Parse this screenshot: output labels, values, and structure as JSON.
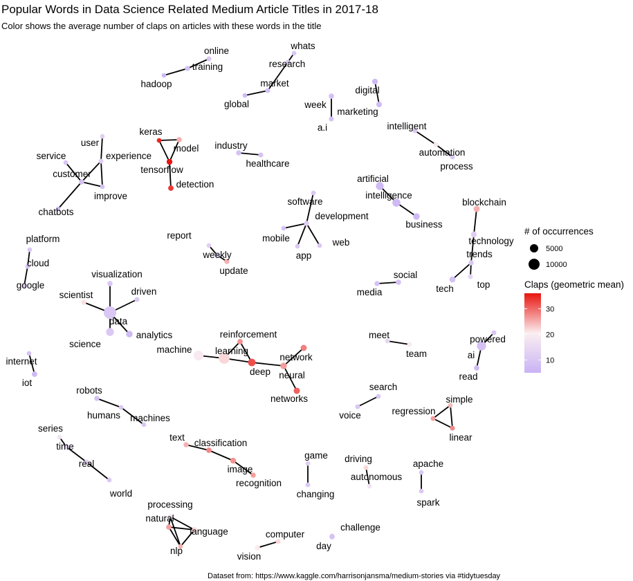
{
  "chart_data": {
    "type": "network",
    "title": "Popular Words in Data Science Related Medium Article Titles in 2017-18",
    "subtitle": "Color shows the average number of claps on articles with these words in the title",
    "caption": "Dataset from: https://www.kaggle.com/harrisonjansma/medium-stories via #tidytuesday",
    "legend": {
      "size_title": "# of occurrences",
      "size_entries": [
        5000,
        10000
      ],
      "color_title": "Claps (geometric mean)",
      "color_ticks": [
        10,
        20,
        30
      ],
      "color_range": [
        5,
        36
      ],
      "color_low": "#c9b3f5",
      "color_mid": "#fbeef0",
      "color_high": "#e8140f",
      "placement": "right"
    },
    "nodes": [
      {
        "word": "online",
        "claps": 8,
        "n": 400
      },
      {
        "word": "training",
        "claps": 7,
        "n": 500
      },
      {
        "word": "hadoop",
        "claps": 6,
        "n": 300
      },
      {
        "word": "whats",
        "claps": 8,
        "n": 300
      },
      {
        "word": "research",
        "claps": 8,
        "n": 400
      },
      {
        "word": "market",
        "claps": 7,
        "n": 400
      },
      {
        "word": "global",
        "claps": 6,
        "n": 300
      },
      {
        "word": "digital",
        "claps": 6,
        "n": 900
      },
      {
        "word": "week",
        "claps": 7,
        "n": 600
      },
      {
        "word": "marketing",
        "claps": 6,
        "n": 800
      },
      {
        "word": "a.i",
        "claps": 7,
        "n": 400
      },
      {
        "word": "intelligent",
        "claps": 8,
        "n": 300
      },
      {
        "word": "automation",
        "claps": 13,
        "n": 400
      },
      {
        "word": "process",
        "claps": 8,
        "n": 300
      },
      {
        "word": "keras",
        "claps": 34,
        "n": 300
      },
      {
        "word": "model",
        "claps": 20,
        "n": 600
      },
      {
        "word": "tensorflow",
        "claps": 36,
        "n": 900
      },
      {
        "word": "detection",
        "claps": 32,
        "n": 700
      },
      {
        "word": "industry",
        "claps": 7,
        "n": 500
      },
      {
        "word": "healthcare",
        "claps": 7,
        "n": 400
      },
      {
        "word": "user",
        "claps": 9,
        "n": 300
      },
      {
        "word": "experience",
        "claps": 9,
        "n": 400
      },
      {
        "word": "service",
        "claps": 8,
        "n": 300
      },
      {
        "word": "customer",
        "claps": 7,
        "n": 500
      },
      {
        "word": "improve",
        "claps": 7,
        "n": 300
      },
      {
        "word": "chatbots",
        "claps": 6,
        "n": 300
      },
      {
        "word": "artificial",
        "claps": 6,
        "n": 3000
      },
      {
        "word": "intelligence",
        "claps": 6,
        "n": 3200
      },
      {
        "word": "business",
        "claps": 6,
        "n": 1500
      },
      {
        "word": "software",
        "claps": 8,
        "n": 300
      },
      {
        "word": "development",
        "claps": 9,
        "n": 500
      },
      {
        "word": "mobile",
        "claps": 7,
        "n": 300
      },
      {
        "word": "web",
        "claps": 8,
        "n": 300
      },
      {
        "word": "app",
        "claps": 8,
        "n": 300
      },
      {
        "word": "blockchain",
        "claps": 20,
        "n": 1200
      },
      {
        "word": "technology",
        "claps": 9,
        "n": 1000
      },
      {
        "word": "trends",
        "claps": 8,
        "n": 500
      },
      {
        "word": "tech",
        "claps": 7,
        "n": 1100
      },
      {
        "word": "top",
        "claps": 10,
        "n": 400
      },
      {
        "word": "report",
        "claps": 9,
        "n": 300
      },
      {
        "word": "weekly",
        "claps": 7,
        "n": 400
      },
      {
        "word": "update",
        "claps": 20,
        "n": 500
      },
      {
        "word": "platform",
        "claps": 8,
        "n": 300
      },
      {
        "word": "cloud",
        "claps": 8,
        "n": 400
      },
      {
        "word": "google",
        "claps": 8,
        "n": 400
      },
      {
        "word": "visualization",
        "claps": 8,
        "n": 600
      },
      {
        "word": "scientist",
        "claps": 15,
        "n": 500
      },
      {
        "word": "driven",
        "claps": 8,
        "n": 400
      },
      {
        "word": "data",
        "claps": 8,
        "n": 12000
      },
      {
        "word": "science",
        "claps": 8,
        "n": 3000
      },
      {
        "word": "analytics",
        "claps": 6,
        "n": 1600
      },
      {
        "word": "social",
        "claps": 7,
        "n": 600
      },
      {
        "word": "media",
        "claps": 7,
        "n": 500
      },
      {
        "word": "machine",
        "claps": 13,
        "n": 6000
      },
      {
        "word": "learning",
        "claps": 16,
        "n": 8000
      },
      {
        "word": "reinforcement",
        "claps": 23,
        "n": 700
      },
      {
        "word": "deep",
        "claps": 30,
        "n": 2500
      },
      {
        "word": "network",
        "claps": 25,
        "n": 1200
      },
      {
        "word": "neural",
        "claps": 22,
        "n": 1500
      },
      {
        "word": "networks",
        "claps": 28,
        "n": 1300
      },
      {
        "word": "meet",
        "claps": 10,
        "n": 300
      },
      {
        "word": "team",
        "claps": 13,
        "n": 300
      },
      {
        "word": "powered",
        "claps": 8,
        "n": 400
      },
      {
        "word": "ai",
        "claps": 7,
        "n": 5000
      },
      {
        "word": "read",
        "claps": 6,
        "n": 600
      },
      {
        "word": "internet",
        "claps": 7,
        "n": 300
      },
      {
        "word": "iot",
        "claps": 6,
        "n": 700
      },
      {
        "word": "search",
        "claps": 8,
        "n": 300
      },
      {
        "word": "voice",
        "claps": 8,
        "n": 400
      },
      {
        "word": "regression",
        "claps": 22,
        "n": 400
      },
      {
        "word": "simple",
        "claps": 19,
        "n": 300
      },
      {
        "word": "linear",
        "claps": 24,
        "n": 400
      },
      {
        "word": "robots",
        "claps": 7,
        "n": 500
      },
      {
        "word": "humans",
        "claps": 8,
        "n": 300
      },
      {
        "word": "machines",
        "claps": 8,
        "n": 300
      },
      {
        "word": "series",
        "claps": 12,
        "n": 300
      },
      {
        "word": "time",
        "claps": 10,
        "n": 600
      },
      {
        "word": "real",
        "claps": 9,
        "n": 400
      },
      {
        "word": "world",
        "claps": 8,
        "n": 300
      },
      {
        "word": "text",
        "claps": 20,
        "n": 500
      },
      {
        "word": "classification",
        "claps": 24,
        "n": 700
      },
      {
        "word": "image",
        "claps": 23,
        "n": 1000
      },
      {
        "word": "recognition",
        "claps": 22,
        "n": 500
      },
      {
        "word": "game",
        "claps": 9,
        "n": 300
      },
      {
        "word": "changing",
        "claps": 8,
        "n": 300
      },
      {
        "word": "driving",
        "claps": 16,
        "n": 300
      },
      {
        "word": "autonomous",
        "claps": 12,
        "n": 300
      },
      {
        "word": "apache",
        "claps": 8,
        "n": 300
      },
      {
        "word": "spark",
        "claps": 8,
        "n": 300
      },
      {
        "word": "processing",
        "claps": 12,
        "n": 300
      },
      {
        "word": "natural",
        "claps": 22,
        "n": 600
      },
      {
        "word": "language",
        "claps": 16,
        "n": 500
      },
      {
        "word": "nlp",
        "claps": 20,
        "n": 300
      },
      {
        "word": "computer",
        "claps": 16,
        "n": 300
      },
      {
        "word": "vision",
        "claps": 14,
        "n": 600
      },
      {
        "word": "challenge",
        "claps": 8,
        "n": 300
      },
      {
        "word": "day",
        "claps": 7,
        "n": 600
      }
    ],
    "edges": [
      [
        "online",
        "training"
      ],
      [
        "training",
        "hadoop"
      ],
      [
        "whats",
        "research"
      ],
      [
        "research",
        "market"
      ],
      [
        "market",
        "global"
      ],
      [
        "digital",
        "marketing"
      ],
      [
        "week",
        "a.i"
      ],
      [
        "intelligent",
        "automation"
      ],
      [
        "automation",
        "process"
      ],
      [
        "keras",
        "tensorflow"
      ],
      [
        "keras",
        "model"
      ],
      [
        "model",
        "tensorflow"
      ],
      [
        "tensorflow",
        "detection"
      ],
      [
        "industry",
        "healthcare"
      ],
      [
        "user",
        "experience"
      ],
      [
        "experience",
        "customer"
      ],
      [
        "experience",
        "improve"
      ],
      [
        "service",
        "customer"
      ],
      [
        "customer",
        "improve"
      ],
      [
        "customer",
        "chatbots"
      ],
      [
        "artificial",
        "intelligence"
      ],
      [
        "intelligence",
        "business"
      ],
      [
        "software",
        "development"
      ],
      [
        "development",
        "mobile"
      ],
      [
        "development",
        "web"
      ],
      [
        "development",
        "app"
      ],
      [
        "blockchain",
        "technology"
      ],
      [
        "technology",
        "trends"
      ],
      [
        "trends",
        "tech"
      ],
      [
        "trends",
        "top"
      ],
      [
        "report",
        "weekly"
      ],
      [
        "weekly",
        "update"
      ],
      [
        "platform",
        "cloud"
      ],
      [
        "cloud",
        "google"
      ],
      [
        "visualization",
        "data"
      ],
      [
        "scientist",
        "data"
      ],
      [
        "driven",
        "data"
      ],
      [
        "data",
        "science"
      ],
      [
        "data",
        "analytics"
      ],
      [
        "social",
        "media"
      ],
      [
        "machine",
        "learning"
      ],
      [
        "learning",
        "reinforcement"
      ],
      [
        "learning",
        "deep"
      ],
      [
        "reinforcement",
        "deep"
      ],
      [
        "deep",
        "neural"
      ],
      [
        "neural",
        "network"
      ],
      [
        "neural",
        "networks"
      ],
      [
        "meet",
        "team"
      ],
      [
        "powered",
        "ai"
      ],
      [
        "ai",
        "read"
      ],
      [
        "internet",
        "iot"
      ],
      [
        "search",
        "voice"
      ],
      [
        "regression",
        "simple"
      ],
      [
        "regression",
        "linear"
      ],
      [
        "simple",
        "linear"
      ],
      [
        "robots",
        "humans"
      ],
      [
        "humans",
        "machines"
      ],
      [
        "series",
        "time"
      ],
      [
        "time",
        "real"
      ],
      [
        "real",
        "world"
      ],
      [
        "text",
        "classification"
      ],
      [
        "classification",
        "image"
      ],
      [
        "image",
        "recognition"
      ],
      [
        "game",
        "changing"
      ],
      [
        "driving",
        "autonomous"
      ],
      [
        "apache",
        "spark"
      ],
      [
        "processing",
        "natural"
      ],
      [
        "processing",
        "language"
      ],
      [
        "natural",
        "language"
      ],
      [
        "natural",
        "nlp"
      ],
      [
        "language",
        "nlp"
      ],
      [
        "processing",
        "nlp"
      ],
      [
        "computer",
        "vision"
      ],
      [
        "challenge",
        "day"
      ]
    ]
  }
}
